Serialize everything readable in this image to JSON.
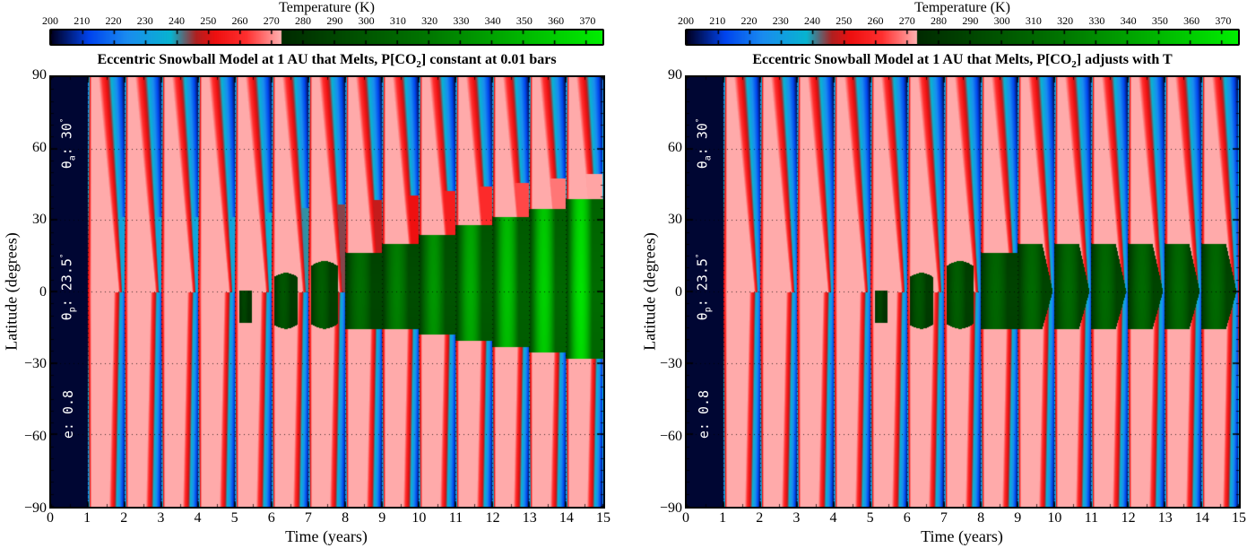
{
  "colorbar": {
    "title": "Temperature (K)",
    "min": 200,
    "max": 375,
    "ticks": [
      200,
      210,
      220,
      230,
      240,
      250,
      260,
      270,
      280,
      290,
      300,
      310,
      320,
      330,
      340,
      350,
      360,
      370
    ],
    "melt_point": 273,
    "cold_stops": [
      {
        "t": 200,
        "color": "#000022"
      },
      {
        "t": 212,
        "color": "#0044ee"
      },
      {
        "t": 224,
        "color": "#1a8cf0"
      },
      {
        "t": 238,
        "color": "#08b4d0"
      },
      {
        "t": 246,
        "color": "#b02020"
      },
      {
        "t": 252,
        "color": "#ee1010"
      },
      {
        "t": 262,
        "color": "#ff3030"
      },
      {
        "t": 273,
        "color": "#ffb0b0"
      }
    ],
    "warm_stops": [
      {
        "t": 273,
        "color": "#002a00"
      },
      {
        "t": 320,
        "color": "#007700"
      },
      {
        "t": 375,
        "color": "#00ee00"
      }
    ]
  },
  "chart_data": [
    {
      "type": "heatmap",
      "title": "Eccentric Snowball Model at 1 AU that Melts, P[CO2] constant at 0.01 bars",
      "title_parts": {
        "pre": "Eccentric Snowball Model at 1 AU that Melts, P[CO",
        "sub": "2",
        "post": "] constant at 0.01 bars"
      },
      "xlabel": "Time (years)",
      "ylabel": "Latitude (degrees)",
      "xlim": [
        0,
        15
      ],
      "ylim": [
        -90,
        90
      ],
      "xticks": [
        0,
        1,
        2,
        3,
        4,
        5,
        6,
        7,
        8,
        9,
        10,
        11,
        12,
        13,
        14,
        15
      ],
      "yticks": [
        90,
        60,
        30,
        0,
        -30,
        -60,
        -90
      ],
      "grid": true,
      "colorbar_label": "Temperature (K)",
      "params": {
        "theta_a": "30",
        "theta_p": "23.5",
        "e": "0.8"
      },
      "param_labels": {
        "theta_a_sym": "θ",
        "theta_a_sub": "a",
        "theta_p_sym": "θ",
        "theta_p_sub": "p",
        "e_sym": "e",
        "sep": ": ",
        "deg": "°"
      },
      "initial_frozen_until_year": 1,
      "melt_regions": [
        {
          "year_start": 5.1,
          "year_end": 5.45,
          "lat_top": 0.5,
          "lat_bottom": -13,
          "shape": "rect",
          "t_peak": 290
        },
        {
          "year_start": 6.05,
          "year_end": 6.7,
          "lat_top": 8,
          "lat_bottom": -15.5,
          "shape": "lens",
          "t_peak": 300
        },
        {
          "year_start": 7.05,
          "year_end": 7.8,
          "lat_top": 13,
          "lat_bottom": -15.5,
          "shape": "lens",
          "t_peak": 305
        },
        {
          "year_start": 8.0,
          "year_end": 9.0,
          "lat_top": 16.5,
          "lat_bottom": -15.5,
          "shape": "rect",
          "t_peak": 315
        },
        {
          "year_start": 9.0,
          "year_end": 10.0,
          "lat_top": 20,
          "lat_bottom": -15.5,
          "shape": "rect",
          "t_peak": 325
        },
        {
          "year_start": 10.0,
          "year_end": 11.0,
          "lat_top": 24,
          "lat_bottom": -18,
          "shape": "rect",
          "t_peak": 335
        },
        {
          "year_start": 11.0,
          "year_end": 12.0,
          "lat_top": 28,
          "lat_bottom": -20.5,
          "shape": "rect",
          "t_peak": 345
        },
        {
          "year_start": 12.0,
          "year_end": 13.0,
          "lat_top": 31.5,
          "lat_bottom": -23,
          "shape": "rect",
          "t_peak": 355
        },
        {
          "year_start": 13.0,
          "year_end": 14.0,
          "lat_top": 35,
          "lat_bottom": -25.5,
          "shape": "rect",
          "t_peak": 362
        },
        {
          "year_start": 14.0,
          "year_end": 15.0,
          "lat_top": 39,
          "lat_bottom": -28,
          "shape": "rect",
          "t_peak": 370
        }
      ]
    },
    {
      "type": "heatmap",
      "title": "Eccentric Snowball Model at 1 AU that Melts, P[CO2] adjusts with T",
      "title_parts": {
        "pre": "Eccentric Snowball Model at 1 AU that Melts, P[CO",
        "sub": "2",
        "post": "] adjusts with T"
      },
      "xlabel": "Time (years)",
      "ylabel": "Latitude (degrees)",
      "xlim": [
        0,
        15
      ],
      "ylim": [
        -90,
        90
      ],
      "xticks": [
        0,
        1,
        2,
        3,
        4,
        5,
        6,
        7,
        8,
        9,
        10,
        11,
        12,
        13,
        14,
        15
      ],
      "yticks": [
        90,
        60,
        30,
        0,
        -30,
        -60,
        -90
      ],
      "grid": true,
      "colorbar_label": "Temperature (K)",
      "params": {
        "theta_a": "30",
        "theta_p": "23.5",
        "e": "0.8"
      },
      "param_labels": {
        "theta_a_sym": "θ",
        "theta_a_sub": "a",
        "theta_p_sym": "θ",
        "theta_p_sub": "p",
        "e_sym": "e",
        "sep": ": ",
        "deg": "°"
      },
      "initial_frozen_until_year": 1,
      "melt_regions": [
        {
          "year_start": 5.1,
          "year_end": 5.45,
          "lat_top": 0.5,
          "lat_bottom": -13,
          "shape": "rect",
          "t_peak": 290
        },
        {
          "year_start": 6.05,
          "year_end": 6.7,
          "lat_top": 8,
          "lat_bottom": -15.5,
          "shape": "lens",
          "t_peak": 300
        },
        {
          "year_start": 7.05,
          "year_end": 7.8,
          "lat_top": 13,
          "lat_bottom": -15.5,
          "shape": "lens",
          "t_peak": 305
        },
        {
          "year_start": 8.0,
          "year_end": 9.0,
          "lat_top": 16.5,
          "lat_bottom": -15.5,
          "shape": "rect",
          "t_peak": 310
        },
        {
          "year_start": 9.0,
          "year_end": 9.95,
          "lat_top": 20,
          "lat_bottom": -15.5,
          "shape": "chevron",
          "t_peak": 312
        },
        {
          "year_start": 10.0,
          "year_end": 10.95,
          "lat_top": 20,
          "lat_bottom": -15.5,
          "shape": "chevron",
          "t_peak": 312
        },
        {
          "year_start": 11.0,
          "year_end": 11.95,
          "lat_top": 20,
          "lat_bottom": -15.5,
          "shape": "chevron",
          "t_peak": 312
        },
        {
          "year_start": 12.0,
          "year_end": 12.95,
          "lat_top": 20,
          "lat_bottom": -15.5,
          "shape": "chevron",
          "t_peak": 312
        },
        {
          "year_start": 13.0,
          "year_end": 13.95,
          "lat_top": 20,
          "lat_bottom": -15.5,
          "shape": "chevron",
          "t_peak": 312
        },
        {
          "year_start": 14.0,
          "year_end": 14.95,
          "lat_top": 20,
          "lat_bottom": -15.5,
          "shape": "chevron",
          "t_peak": 312
        }
      ]
    }
  ]
}
